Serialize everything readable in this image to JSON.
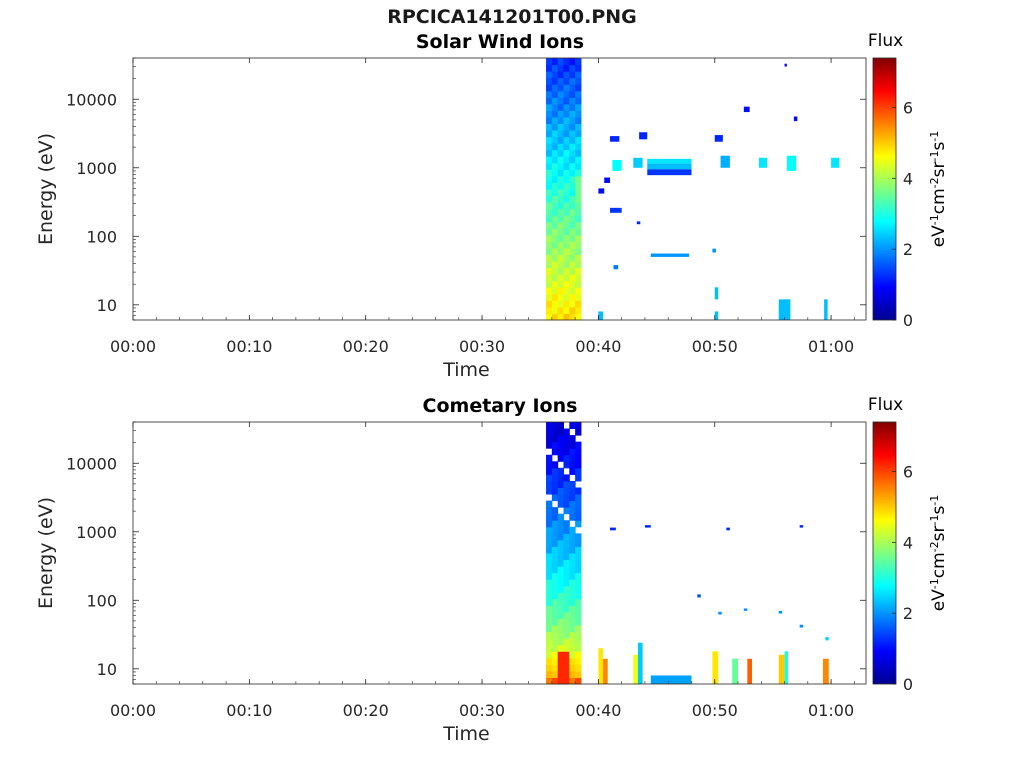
{
  "figure": {
    "title": "RPCICA141201T00.PNG"
  },
  "chart_data": [
    {
      "type": "heatmap",
      "title": "Solar Wind Ions",
      "xlabel": "Time",
      "ylabel": "Energy (eV)",
      "x_ticks": [
        "00:00",
        "00:10",
        "00:20",
        "00:30",
        "00:40",
        "00:50",
        "01:00"
      ],
      "y_ticks": [
        "10",
        "100",
        "1000",
        "10000"
      ],
      "y_scale": "log",
      "xlim_minutes": [
        0,
        63
      ],
      "ylim_eV": [
        6,
        40000
      ],
      "colorbar": {
        "label_top": "Flux",
        "unit": "eV-1cm-2sr-1s-1",
        "ticks": [
          "0",
          "2",
          "4",
          "6"
        ],
        "range": [
          0,
          7.4
        ]
      },
      "cells": [
        {
          "t0": 35.5,
          "t1": 38.5,
          "e0": 6,
          "e1": 40000,
          "profile": "column"
        },
        {
          "t0": 41.2,
          "t1": 42.0,
          "e0": 900,
          "e1": 1300,
          "v": 2.8
        },
        {
          "t0": 41.0,
          "t1": 41.8,
          "e0": 2400,
          "e1": 2900,
          "v": 1.2
        },
        {
          "t0": 40.5,
          "t1": 41.0,
          "e0": 600,
          "e1": 720,
          "v": 1.0
        },
        {
          "t0": 40.0,
          "t1": 40.5,
          "e0": 420,
          "e1": 500,
          "v": 1.0
        },
        {
          "t0": 41.0,
          "t1": 42.0,
          "e0": 220,
          "e1": 260,
          "v": 1.3
        },
        {
          "t0": 43.5,
          "t1": 44.2,
          "e0": 2600,
          "e1": 3300,
          "v": 1.2
        },
        {
          "t0": 43.0,
          "t1": 43.8,
          "e0": 1000,
          "e1": 1400,
          "v": 2.4
        },
        {
          "t0": 44.2,
          "t1": 48.0,
          "e0": 1150,
          "e1": 1350,
          "v": 2.6
        },
        {
          "t0": 44.2,
          "t1": 48.0,
          "e0": 950,
          "e1": 1150,
          "v": 2.3
        },
        {
          "t0": 44.2,
          "t1": 48.0,
          "e0": 780,
          "e1": 950,
          "v": 1.3
        },
        {
          "t0": 44.5,
          "t1": 47.8,
          "e0": 50,
          "e1": 56,
          "v": 2.0
        },
        {
          "t0": 41.3,
          "t1": 41.7,
          "e0": 33,
          "e1": 38,
          "v": 1.8
        },
        {
          "t0": 43.3,
          "t1": 43.6,
          "e0": 150,
          "e1": 165,
          "v": 1.2
        },
        {
          "t0": 50.5,
          "t1": 51.3,
          "e0": 1000,
          "e1": 1500,
          "v": 2.2
        },
        {
          "t0": 50.0,
          "t1": 50.7,
          "e0": 2400,
          "e1": 3000,
          "v": 1.2
        },
        {
          "t0": 53.8,
          "t1": 54.5,
          "e0": 1000,
          "e1": 1400,
          "v": 2.6
        },
        {
          "t0": 56.2,
          "t1": 57.0,
          "e0": 900,
          "e1": 1500,
          "v": 2.8
        },
        {
          "t0": 60.0,
          "t1": 60.7,
          "e0": 1000,
          "e1": 1400,
          "v": 2.6
        },
        {
          "t0": 56.0,
          "t1": 56.2,
          "e0": 30000,
          "e1": 33000,
          "v": 1.0
        },
        {
          "t0": 52.5,
          "t1": 53.0,
          "e0": 6500,
          "e1": 7800,
          "v": 1.0
        },
        {
          "t0": 56.8,
          "t1": 57.1,
          "e0": 4800,
          "e1": 5600,
          "v": 1.0
        },
        {
          "t0": 49.8,
          "t1": 50.1,
          "e0": 58,
          "e1": 66,
          "v": 2.0
        },
        {
          "t0": 55.5,
          "t1": 56.5,
          "e0": 6,
          "e1": 12,
          "v": 2.3
        },
        {
          "t0": 59.4,
          "t1": 59.7,
          "e0": 6,
          "e1": 12,
          "v": 2.3
        },
        {
          "t0": 50.0,
          "t1": 50.3,
          "e0": 12,
          "e1": 18,
          "v": 2.3
        },
        {
          "t0": 40.0,
          "t1": 40.4,
          "e0": 6,
          "e1": 8,
          "v": 2.3
        },
        {
          "t0": 50.0,
          "t1": 50.3,
          "e0": 6,
          "e1": 8,
          "v": 2.3
        }
      ]
    },
    {
      "type": "heatmap",
      "title": "Cometary Ions",
      "xlabel": "Time",
      "ylabel": "Energy (eV)",
      "x_ticks": [
        "00:00",
        "00:10",
        "00:20",
        "00:30",
        "00:40",
        "00:50",
        "01:00"
      ],
      "y_ticks": [
        "10",
        "100",
        "1000",
        "10000"
      ],
      "y_scale": "log",
      "xlim_minutes": [
        0,
        63
      ],
      "ylim_eV": [
        6,
        40000
      ],
      "colorbar": {
        "label_top": "Flux",
        "unit": "eV-1cm-2sr-1s-1",
        "ticks": [
          "0",
          "2",
          "4",
          "6"
        ],
        "range": [
          0,
          7.4
        ]
      },
      "cells": [
        {
          "t0": 35.5,
          "t1": 38.5,
          "e0": 6,
          "e1": 40000,
          "profile": "column2"
        },
        {
          "t0": 40.0,
          "t1": 40.4,
          "e0": 6,
          "e1": 20,
          "v": 4.8
        },
        {
          "t0": 40.4,
          "t1": 40.8,
          "e0": 6,
          "e1": 14,
          "v": 5.5
        },
        {
          "t0": 43.0,
          "t1": 43.4,
          "e0": 6,
          "e1": 16,
          "v": 4.5
        },
        {
          "t0": 43.4,
          "t1": 43.8,
          "e0": 6,
          "e1": 24,
          "v": 2.4
        },
        {
          "t0": 44.5,
          "t1": 48.0,
          "e0": 6,
          "e1": 8,
          "v": 2.1
        },
        {
          "t0": 49.8,
          "t1": 50.3,
          "e0": 6,
          "e1": 18,
          "v": 4.8
        },
        {
          "t0": 51.5,
          "t1": 52.0,
          "e0": 6,
          "e1": 14,
          "v": 3.5
        },
        {
          "t0": 52.8,
          "t1": 53.2,
          "e0": 6,
          "e1": 14,
          "v": 5.8
        },
        {
          "t0": 55.5,
          "t1": 56.0,
          "e0": 6,
          "e1": 16,
          "v": 5.0
        },
        {
          "t0": 56.0,
          "t1": 56.3,
          "e0": 6,
          "e1": 18,
          "v": 3.0
        },
        {
          "t0": 59.3,
          "t1": 59.8,
          "e0": 6,
          "e1": 14,
          "v": 5.5
        },
        {
          "t0": 41.0,
          "t1": 41.5,
          "e0": 1050,
          "e1": 1150,
          "v": 1.2
        },
        {
          "t0": 44.0,
          "t1": 44.5,
          "e0": 1150,
          "e1": 1250,
          "v": 1.2
        },
        {
          "t0": 51.0,
          "t1": 51.3,
          "e0": 1050,
          "e1": 1150,
          "v": 1.2
        },
        {
          "t0": 57.3,
          "t1": 57.6,
          "e0": 1150,
          "e1": 1250,
          "v": 1.2
        },
        {
          "t0": 48.5,
          "t1": 48.8,
          "e0": 110,
          "e1": 122,
          "v": 1.5
        },
        {
          "t0": 50.3,
          "t1": 50.6,
          "e0": 62,
          "e1": 68,
          "v": 2.0
        },
        {
          "t0": 52.5,
          "t1": 52.8,
          "e0": 70,
          "e1": 76,
          "v": 2.0
        },
        {
          "t0": 55.5,
          "t1": 55.8,
          "e0": 64,
          "e1": 70,
          "v": 2.0
        },
        {
          "t0": 57.3,
          "t1": 57.6,
          "e0": 40,
          "e1": 44,
          "v": 2.0
        },
        {
          "t0": 59.5,
          "t1": 59.8,
          "e0": 26,
          "e1": 29,
          "v": 2.5
        }
      ]
    }
  ]
}
